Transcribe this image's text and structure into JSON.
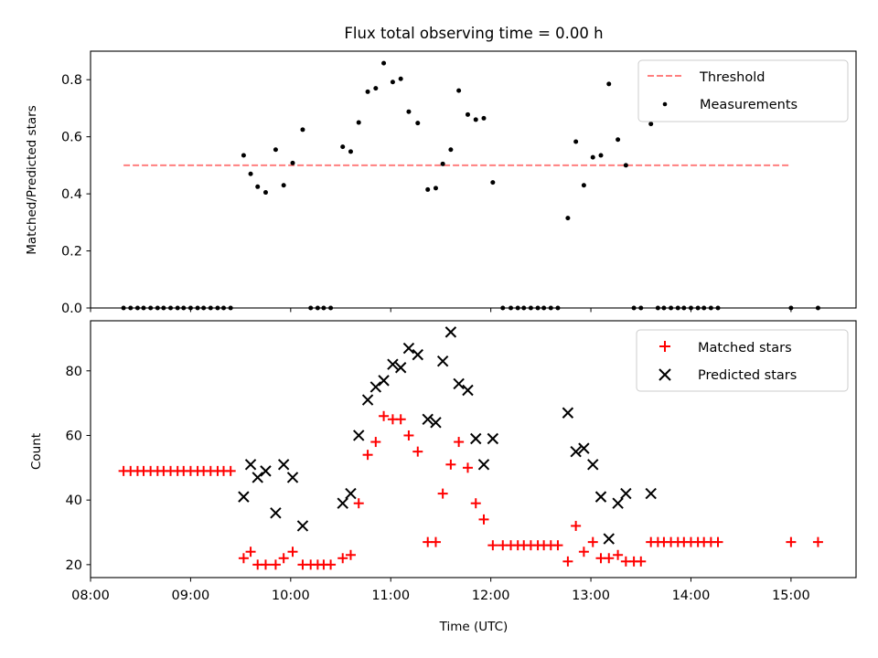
{
  "chart_data": [
    {
      "type": "scatter",
      "title": "Flux total observing time = 0.00 h",
      "xlabel": "",
      "ylabel": "Matched/Predicted stars",
      "xlim": [
        8.0,
        15.65
      ],
      "ylim": [
        0.0,
        0.9
      ],
      "yticks": [
        0.0,
        0.2,
        0.4,
        0.6,
        0.8
      ],
      "ytick_labels": [
        "0.0",
        "0.2",
        "0.4",
        "0.6",
        "0.8"
      ],
      "legend_position": "top-right",
      "series": [
        {
          "name": "Threshold",
          "kind": "line",
          "style": "dashed",
          "color": "#ff7f7f",
          "x": [
            8.33,
            15.0
          ],
          "y": [
            0.5,
            0.5
          ]
        },
        {
          "name": "Measurements",
          "kind": "scatter",
          "color": "#000000",
          "points": [
            [
              8.33,
              0.0
            ],
            [
              8.4,
              0.0
            ],
            [
              8.47,
              0.0
            ],
            [
              8.53,
              0.0
            ],
            [
              8.6,
              0.0
            ],
            [
              8.67,
              0.0
            ],
            [
              8.73,
              0.0
            ],
            [
              8.8,
              0.0
            ],
            [
              8.87,
              0.0
            ],
            [
              8.93,
              0.0
            ],
            [
              9.0,
              0.0
            ],
            [
              9.07,
              0.0
            ],
            [
              9.13,
              0.0
            ],
            [
              9.2,
              0.0
            ],
            [
              9.27,
              0.0
            ],
            [
              9.33,
              0.0
            ],
            [
              9.4,
              0.0
            ],
            [
              9.53,
              0.535
            ],
            [
              9.6,
              0.47
            ],
            [
              9.67,
              0.425
            ],
            [
              9.75,
              0.405
            ],
            [
              9.85,
              0.555
            ],
            [
              9.93,
              0.43
            ],
            [
              10.02,
              0.508
            ],
            [
              10.12,
              0.625
            ],
            [
              10.2,
              0.0
            ],
            [
              10.27,
              0.0
            ],
            [
              10.33,
              0.0
            ],
            [
              10.4,
              0.0
            ],
            [
              10.52,
              0.565
            ],
            [
              10.6,
              0.548
            ],
            [
              10.68,
              0.65
            ],
            [
              10.77,
              0.758
            ],
            [
              10.85,
              0.77
            ],
            [
              10.93,
              0.858
            ],
            [
              11.02,
              0.792
            ],
            [
              11.1,
              0.803
            ],
            [
              11.18,
              0.688
            ],
            [
              11.27,
              0.648
            ],
            [
              11.37,
              0.415
            ],
            [
              11.45,
              0.42
            ],
            [
              11.52,
              0.505
            ],
            [
              11.6,
              0.555
            ],
            [
              11.68,
              0.762
            ],
            [
              11.77,
              0.678
            ],
            [
              11.85,
              0.66
            ],
            [
              11.93,
              0.665
            ],
            [
              12.02,
              0.44
            ],
            [
              12.12,
              0.0
            ],
            [
              12.2,
              0.0
            ],
            [
              12.27,
              0.0
            ],
            [
              12.33,
              0.0
            ],
            [
              12.4,
              0.0
            ],
            [
              12.47,
              0.0
            ],
            [
              12.53,
              0.0
            ],
            [
              12.6,
              0.0
            ],
            [
              12.67,
              0.0
            ],
            [
              12.77,
              0.315
            ],
            [
              12.85,
              0.583
            ],
            [
              12.93,
              0.43
            ],
            [
              13.02,
              0.528
            ],
            [
              13.1,
              0.535
            ],
            [
              13.18,
              0.785
            ],
            [
              13.27,
              0.59
            ],
            [
              13.35,
              0.5
            ],
            [
              13.43,
              0.0
            ],
            [
              13.5,
              0.0
            ],
            [
              13.6,
              0.645
            ],
            [
              13.67,
              0.0
            ],
            [
              13.73,
              0.0
            ],
            [
              13.8,
              0.0
            ],
            [
              13.87,
              0.0
            ],
            [
              13.93,
              0.0
            ],
            [
              14.0,
              0.0
            ],
            [
              14.07,
              0.0
            ],
            [
              14.13,
              0.0
            ],
            [
              14.2,
              0.0
            ],
            [
              14.27,
              0.0
            ],
            [
              15.0,
              0.0
            ],
            [
              15.27,
              0.0
            ]
          ]
        }
      ]
    },
    {
      "type": "scatter",
      "title": "",
      "xlabel": "Time (UTC)",
      "ylabel": "Count",
      "xlim": [
        8.0,
        15.65
      ],
      "ylim": [
        16.0,
        95.5
      ],
      "yticks": [
        20,
        40,
        60,
        80
      ],
      "ytick_labels": [
        "20",
        "40",
        "60",
        "80"
      ],
      "xticks": [
        8,
        9,
        10,
        11,
        12,
        13,
        14,
        15
      ],
      "xtick_labels": [
        "08:00",
        "09:00",
        "10:00",
        "11:00",
        "12:00",
        "13:00",
        "14:00",
        "15:00"
      ],
      "legend_position": "top-right",
      "series": [
        {
          "name": "Matched stars",
          "kind": "scatter",
          "marker": "plus",
          "color": "#ff0000",
          "points": [
            [
              8.33,
              49
            ],
            [
              8.4,
              49
            ],
            [
              8.47,
              49
            ],
            [
              8.53,
              49
            ],
            [
              8.6,
              49
            ],
            [
              8.67,
              49
            ],
            [
              8.73,
              49
            ],
            [
              8.8,
              49
            ],
            [
              8.87,
              49
            ],
            [
              8.93,
              49
            ],
            [
              9.0,
              49
            ],
            [
              9.07,
              49
            ],
            [
              9.13,
              49
            ],
            [
              9.2,
              49
            ],
            [
              9.27,
              49
            ],
            [
              9.33,
              49
            ],
            [
              9.4,
              49
            ],
            [
              9.53,
              22
            ],
            [
              9.6,
              24
            ],
            [
              9.67,
              20
            ],
            [
              9.75,
              20
            ],
            [
              9.85,
              20
            ],
            [
              9.93,
              22
            ],
            [
              10.02,
              24
            ],
            [
              10.12,
              20
            ],
            [
              10.2,
              20
            ],
            [
              10.27,
              20
            ],
            [
              10.33,
              20
            ],
            [
              10.4,
              20
            ],
            [
              10.52,
              22
            ],
            [
              10.6,
              23
            ],
            [
              10.68,
              39
            ],
            [
              10.77,
              54
            ],
            [
              10.85,
              58
            ],
            [
              10.93,
              66
            ],
            [
              11.02,
              65
            ],
            [
              11.1,
              65
            ],
            [
              11.18,
              60
            ],
            [
              11.27,
              55
            ],
            [
              11.37,
              27
            ],
            [
              11.45,
              27
            ],
            [
              11.52,
              42
            ],
            [
              11.6,
              51
            ],
            [
              11.68,
              58
            ],
            [
              11.77,
              50
            ],
            [
              11.85,
              39
            ],
            [
              11.93,
              34
            ],
            [
              12.02,
              26
            ],
            [
              12.12,
              26
            ],
            [
              12.2,
              26
            ],
            [
              12.27,
              26
            ],
            [
              12.33,
              26
            ],
            [
              12.4,
              26
            ],
            [
              12.47,
              26
            ],
            [
              12.53,
              26
            ],
            [
              12.6,
              26
            ],
            [
              12.67,
              26
            ],
            [
              12.77,
              21
            ],
            [
              12.85,
              32
            ],
            [
              12.93,
              24
            ],
            [
              13.02,
              27
            ],
            [
              13.1,
              22
            ],
            [
              13.18,
              22
            ],
            [
              13.27,
              23
            ],
            [
              13.35,
              21
            ],
            [
              13.43,
              21
            ],
            [
              13.5,
              21
            ],
            [
              13.6,
              27
            ],
            [
              13.67,
              27
            ],
            [
              13.73,
              27
            ],
            [
              13.8,
              27
            ],
            [
              13.87,
              27
            ],
            [
              13.93,
              27
            ],
            [
              14.0,
              27
            ],
            [
              14.07,
              27
            ],
            [
              14.13,
              27
            ],
            [
              14.2,
              27
            ],
            [
              14.27,
              27
            ],
            [
              15.0,
              27
            ],
            [
              15.27,
              27
            ]
          ]
        },
        {
          "name": "Predicted stars",
          "kind": "scatter",
          "marker": "x",
          "color": "#000000",
          "points": [
            [
              9.53,
              41
            ],
            [
              9.6,
              51
            ],
            [
              9.67,
              47
            ],
            [
              9.75,
              49
            ],
            [
              9.85,
              36
            ],
            [
              9.93,
              51
            ],
            [
              10.02,
              47
            ],
            [
              10.12,
              32
            ],
            [
              10.52,
              39
            ],
            [
              10.6,
              42
            ],
            [
              10.68,
              60
            ],
            [
              10.77,
              71
            ],
            [
              10.85,
              75
            ],
            [
              10.93,
              77
            ],
            [
              11.02,
              82
            ],
            [
              11.1,
              81
            ],
            [
              11.18,
              87
            ],
            [
              11.27,
              85
            ],
            [
              11.37,
              65
            ],
            [
              11.45,
              64
            ],
            [
              11.52,
              83
            ],
            [
              11.6,
              92
            ],
            [
              11.68,
              76
            ],
            [
              11.77,
              74
            ],
            [
              11.85,
              59
            ],
            [
              11.93,
              51
            ],
            [
              12.02,
              59
            ],
            [
              12.77,
              67
            ],
            [
              12.85,
              55
            ],
            [
              12.93,
              56
            ],
            [
              13.02,
              51
            ],
            [
              13.1,
              41
            ],
            [
              13.18,
              28
            ],
            [
              13.27,
              39
            ],
            [
              13.35,
              42
            ],
            [
              13.6,
              42
            ]
          ]
        }
      ]
    }
  ]
}
